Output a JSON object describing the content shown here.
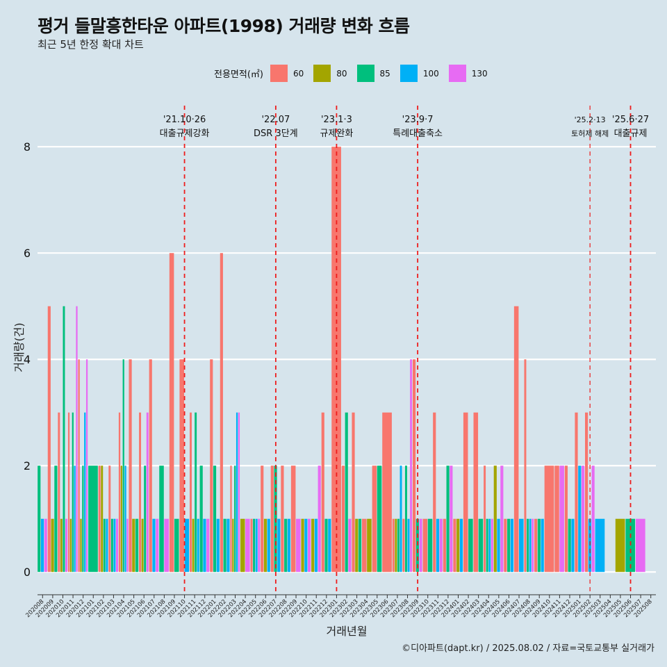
{
  "title": "평거 들말흥한타운 아파트(1998) 거래량 변화 흐름",
  "subtitle": "최근 5년 한정 확대 차트",
  "caption": "©디아파트(dapt.kr) / 2025.08.02 / 자료=국토교통부 실거래가",
  "legend": {
    "title": "전용면적(㎡)",
    "items": [
      {
        "label": "60",
        "color": "#f8766d"
      },
      {
        "label": "80",
        "color": "#a3a500"
      },
      {
        "label": "85",
        "color": "#00bf7d"
      },
      {
        "label": "100",
        "color": "#00b0f6"
      },
      {
        "label": "130",
        "color": "#e76bf3"
      }
    ]
  },
  "chart_data": {
    "type": "bar",
    "xlabel": "거래년월",
    "ylabel": "거래량(건)",
    "ylim": [
      -0.35,
      8.8
    ],
    "yticks": [
      0,
      2,
      4,
      6,
      8
    ],
    "grid": true,
    "legend_position": "top",
    "categories": [
      "202008",
      "202009",
      "202010",
      "202011",
      "202012",
      "202101",
      "202102",
      "202103",
      "202104",
      "202105",
      "202106",
      "202107",
      "202108",
      "202109",
      "202110",
      "202111",
      "202112",
      "202201",
      "202202",
      "202203",
      "202204",
      "202205",
      "202206",
      "202207",
      "202208",
      "202209",
      "202210",
      "202211",
      "202212",
      "202301",
      "202302",
      "202303",
      "202304",
      "202305",
      "202306",
      "202307",
      "202308",
      "202309",
      "202310",
      "202311",
      "202312",
      "202401",
      "202402",
      "202403",
      "202404",
      "202405",
      "202406",
      "202407",
      "202408",
      "202409",
      "202410",
      "202411",
      "202412",
      "202501",
      "202502",
      "202503",
      "202504",
      "202505",
      "202506",
      "202507",
      "202508"
    ],
    "series": [
      {
        "name": "60",
        "values": [
          0,
          5,
          3,
          3,
          4,
          0,
          2,
          2,
          3,
          4,
          3,
          4,
          0,
          6,
          4,
          3,
          0,
          4,
          6,
          2,
          0,
          1,
          2,
          2,
          2,
          2,
          0,
          0,
          3,
          8,
          2,
          3,
          1,
          2,
          3,
          1,
          1,
          4,
          1,
          3,
          1,
          1,
          3,
          3,
          2,
          0,
          1,
          5,
          4,
          1,
          2,
          2,
          2,
          3,
          3,
          0,
          0,
          0,
          0,
          0,
          0
        ]
      },
      {
        "name": "80",
        "values": [
          0,
          1,
          1,
          1,
          1,
          0,
          2,
          0,
          2,
          1,
          1,
          0,
          0,
          0,
          0,
          1,
          0,
          0,
          0,
          1,
          1,
          0,
          1,
          0,
          0,
          0,
          1,
          1,
          0,
          0,
          0,
          1,
          1,
          0,
          0,
          1,
          0,
          0,
          0,
          0,
          0,
          1,
          0,
          0,
          0,
          2,
          0,
          0,
          0,
          0,
          0,
          0,
          0,
          0,
          0,
          0,
          0,
          1,
          0,
          0,
          0
        ]
      },
      {
        "name": "85",
        "values": [
          2,
          2,
          5,
          3,
          2,
          2,
          1,
          1,
          4,
          1,
          2,
          0,
          2,
          1,
          0,
          3,
          2,
          2,
          1,
          2,
          0,
          1,
          0,
          2,
          1,
          0,
          0,
          0,
          1,
          0,
          3,
          1,
          0,
          2,
          0,
          1,
          2,
          1,
          1,
          0,
          2,
          0,
          1,
          1,
          1,
          0,
          1,
          0,
          1,
          1,
          0,
          0,
          1,
          0,
          0,
          0,
          0,
          0,
          1,
          0,
          0
        ]
      },
      {
        "name": "100",
        "values": [
          1,
          0,
          0,
          2,
          3,
          0,
          1,
          1,
          2,
          0,
          0,
          1,
          0,
          0,
          1,
          1,
          1,
          1,
          1,
          3,
          0,
          1,
          1,
          1,
          1,
          0,
          1,
          1,
          1,
          0,
          0,
          0,
          0,
          0,
          0,
          2,
          1,
          0,
          0,
          1,
          0,
          1,
          0,
          0,
          1,
          1,
          1,
          1,
          1,
          1,
          0,
          0,
          1,
          2,
          1,
          1,
          0,
          0,
          0,
          0,
          0
        ]
      },
      {
        "name": "130",
        "values": [
          1,
          0,
          1,
          5,
          4,
          0,
          0,
          1,
          1,
          0,
          3,
          1,
          1,
          0,
          0,
          0,
          1,
          0,
          0,
          3,
          1,
          1,
          0,
          0,
          0,
          1,
          1,
          2,
          0,
          0,
          1,
          0,
          0,
          0,
          0,
          0,
          4,
          1,
          0,
          1,
          2,
          0,
          0,
          0,
          1,
          2,
          0,
          0,
          1,
          0,
          0,
          2,
          0,
          2,
          2,
          0,
          0,
          0,
          0,
          1,
          0
        ]
      }
    ],
    "annotations": [
      {
        "x": "202110",
        "date": "'21.10·26",
        "label": "대출규제강화"
      },
      {
        "x": "202207",
        "date": "'22.07",
        "label": "DSR 3단계"
      },
      {
        "x": "202301",
        "date": "'23.1·3",
        "label": "규제완화"
      },
      {
        "x": "202309",
        "date": "'23.9·7",
        "label": "특례대출축소"
      },
      {
        "x": "202502",
        "date": "'25.2·13",
        "label": "토허제 해제"
      },
      {
        "x": "202506",
        "date": "'25.6·27",
        "label": "대출규제"
      }
    ]
  }
}
